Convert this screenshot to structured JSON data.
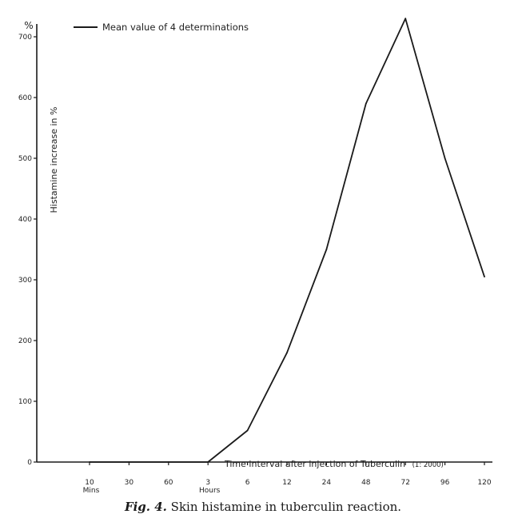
{
  "chart_data": {
    "type": "line",
    "ylabel": "Histamine increase in %",
    "y_unit": "%",
    "xlabel": "Time interval after injection of Tuberculin",
    "xlabel_suffix": "(1: 2000)",
    "ylim": [
      0,
      700
    ],
    "yticks": [
      0,
      100,
      200,
      300,
      400,
      500,
      600,
      700
    ],
    "categories": [
      {
        "label": "10",
        "sub": "Mins"
      },
      {
        "label": "30",
        "sub": ""
      },
      {
        "label": "60",
        "sub": ""
      },
      {
        "label": "3",
        "sub": "Hours"
      },
      {
        "label": "6",
        "sub": ""
      },
      {
        "label": "12",
        "sub": ""
      },
      {
        "label": "24",
        "sub": ""
      },
      {
        "label": "48",
        "sub": ""
      },
      {
        "label": "72",
        "sub": ""
      },
      {
        "label": "96",
        "sub": ""
      },
      {
        "label": "120",
        "sub": ""
      }
    ],
    "series": [
      {
        "name": "Mean value of 4 determinations",
        "values": [
          0,
          0,
          0,
          0,
          52,
          180,
          350,
          590,
          730,
          500,
          305
        ]
      }
    ],
    "legend": "top-left",
    "grid": false
  },
  "caption": {
    "fig": "Fig. 4.",
    "text": "Skin histamine in tuberculin reaction."
  }
}
